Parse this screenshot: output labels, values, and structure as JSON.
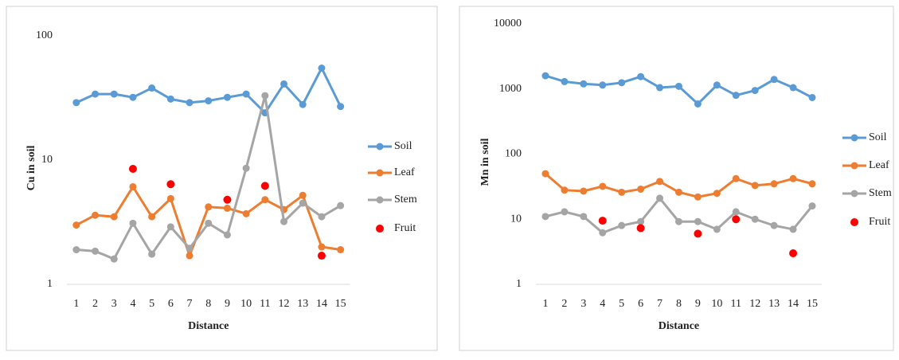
{
  "chart_data": [
    {
      "type": "line",
      "log_scale": true,
      "legend": "right",
      "grid": false,
      "x_label": "Distance",
      "y_label": "Cu in soil",
      "categories": [
        "1",
        "2",
        "3",
        "4",
        "5",
        "6",
        "7",
        "8",
        "9",
        "10",
        "11",
        "12",
        "13",
        "14",
        "15"
      ],
      "ylim": [
        1,
        100
      ],
      "yticks": [
        1,
        10,
        100
      ],
      "series": [
        {
          "name": "Soil",
          "color": "#5b9bd5",
          "style": "line",
          "values": [
            29,
            34,
            34,
            32,
            38,
            31,
            29,
            30,
            32,
            34,
            24,
            41,
            28,
            55,
            27
          ]
        },
        {
          "name": "Leaf",
          "color": "#ed7d31",
          "style": "line",
          "values": [
            3.0,
            3.6,
            3.5,
            6.1,
            3.5,
            4.9,
            1.7,
            4.2,
            4.1,
            3.7,
            4.8,
            4.0,
            5.2,
            2.0,
            1.9
          ]
        },
        {
          "name": "Stem",
          "color": "#a5a5a5",
          "style": "line",
          "values": [
            1.9,
            1.85,
            1.6,
            3.1,
            1.75,
            2.9,
            1.95,
            3.1,
            2.5,
            8.6,
            33,
            3.2,
            4.5,
            3.5,
            4.3
          ]
        },
        {
          "name": "Fruit",
          "color": "#ff0000",
          "style": "markers",
          "values": [
            null,
            null,
            null,
            8.5,
            null,
            6.4,
            null,
            null,
            4.8,
            null,
            6.2,
            null,
            null,
            1.7,
            null
          ]
        }
      ]
    },
    {
      "type": "line",
      "log_scale": true,
      "legend": "right",
      "grid": false,
      "x_label": "Distance",
      "y_label": "Mn in soil",
      "categories": [
        "1",
        "2",
        "3",
        "4",
        "5",
        "6",
        "7",
        "8",
        "9",
        "10",
        "11",
        "12",
        "13",
        "14",
        "15"
      ],
      "ylim": [
        1,
        10000
      ],
      "yticks": [
        1,
        10,
        100,
        1000,
        10000
      ],
      "series": [
        {
          "name": "Soil",
          "color": "#5b9bd5",
          "style": "line",
          "values": [
            1600,
            1300,
            1200,
            1150,
            1250,
            1550,
            1050,
            1100,
            590,
            1150,
            800,
            950,
            1400,
            1050,
            740
          ]
        },
        {
          "name": "Leaf",
          "color": "#ed7d31",
          "style": "line",
          "values": [
            50,
            28,
            27,
            32,
            26,
            29,
            38,
            26,
            22,
            25,
            42,
            33,
            35,
            42,
            35
          ]
        },
        {
          "name": "Stem",
          "color": "#a5a5a5",
          "style": "line",
          "values": [
            11,
            13,
            11,
            6.2,
            8,
            9.2,
            21,
            9.2,
            9.2,
            7,
            13,
            10,
            8,
            7,
            16
          ]
        },
        {
          "name": "Fruit",
          "color": "#ff0000",
          "style": "markers",
          "values": [
            null,
            null,
            null,
            9.5,
            null,
            7.3,
            null,
            null,
            6,
            null,
            10,
            null,
            null,
            3,
            null
          ]
        }
      ]
    }
  ]
}
